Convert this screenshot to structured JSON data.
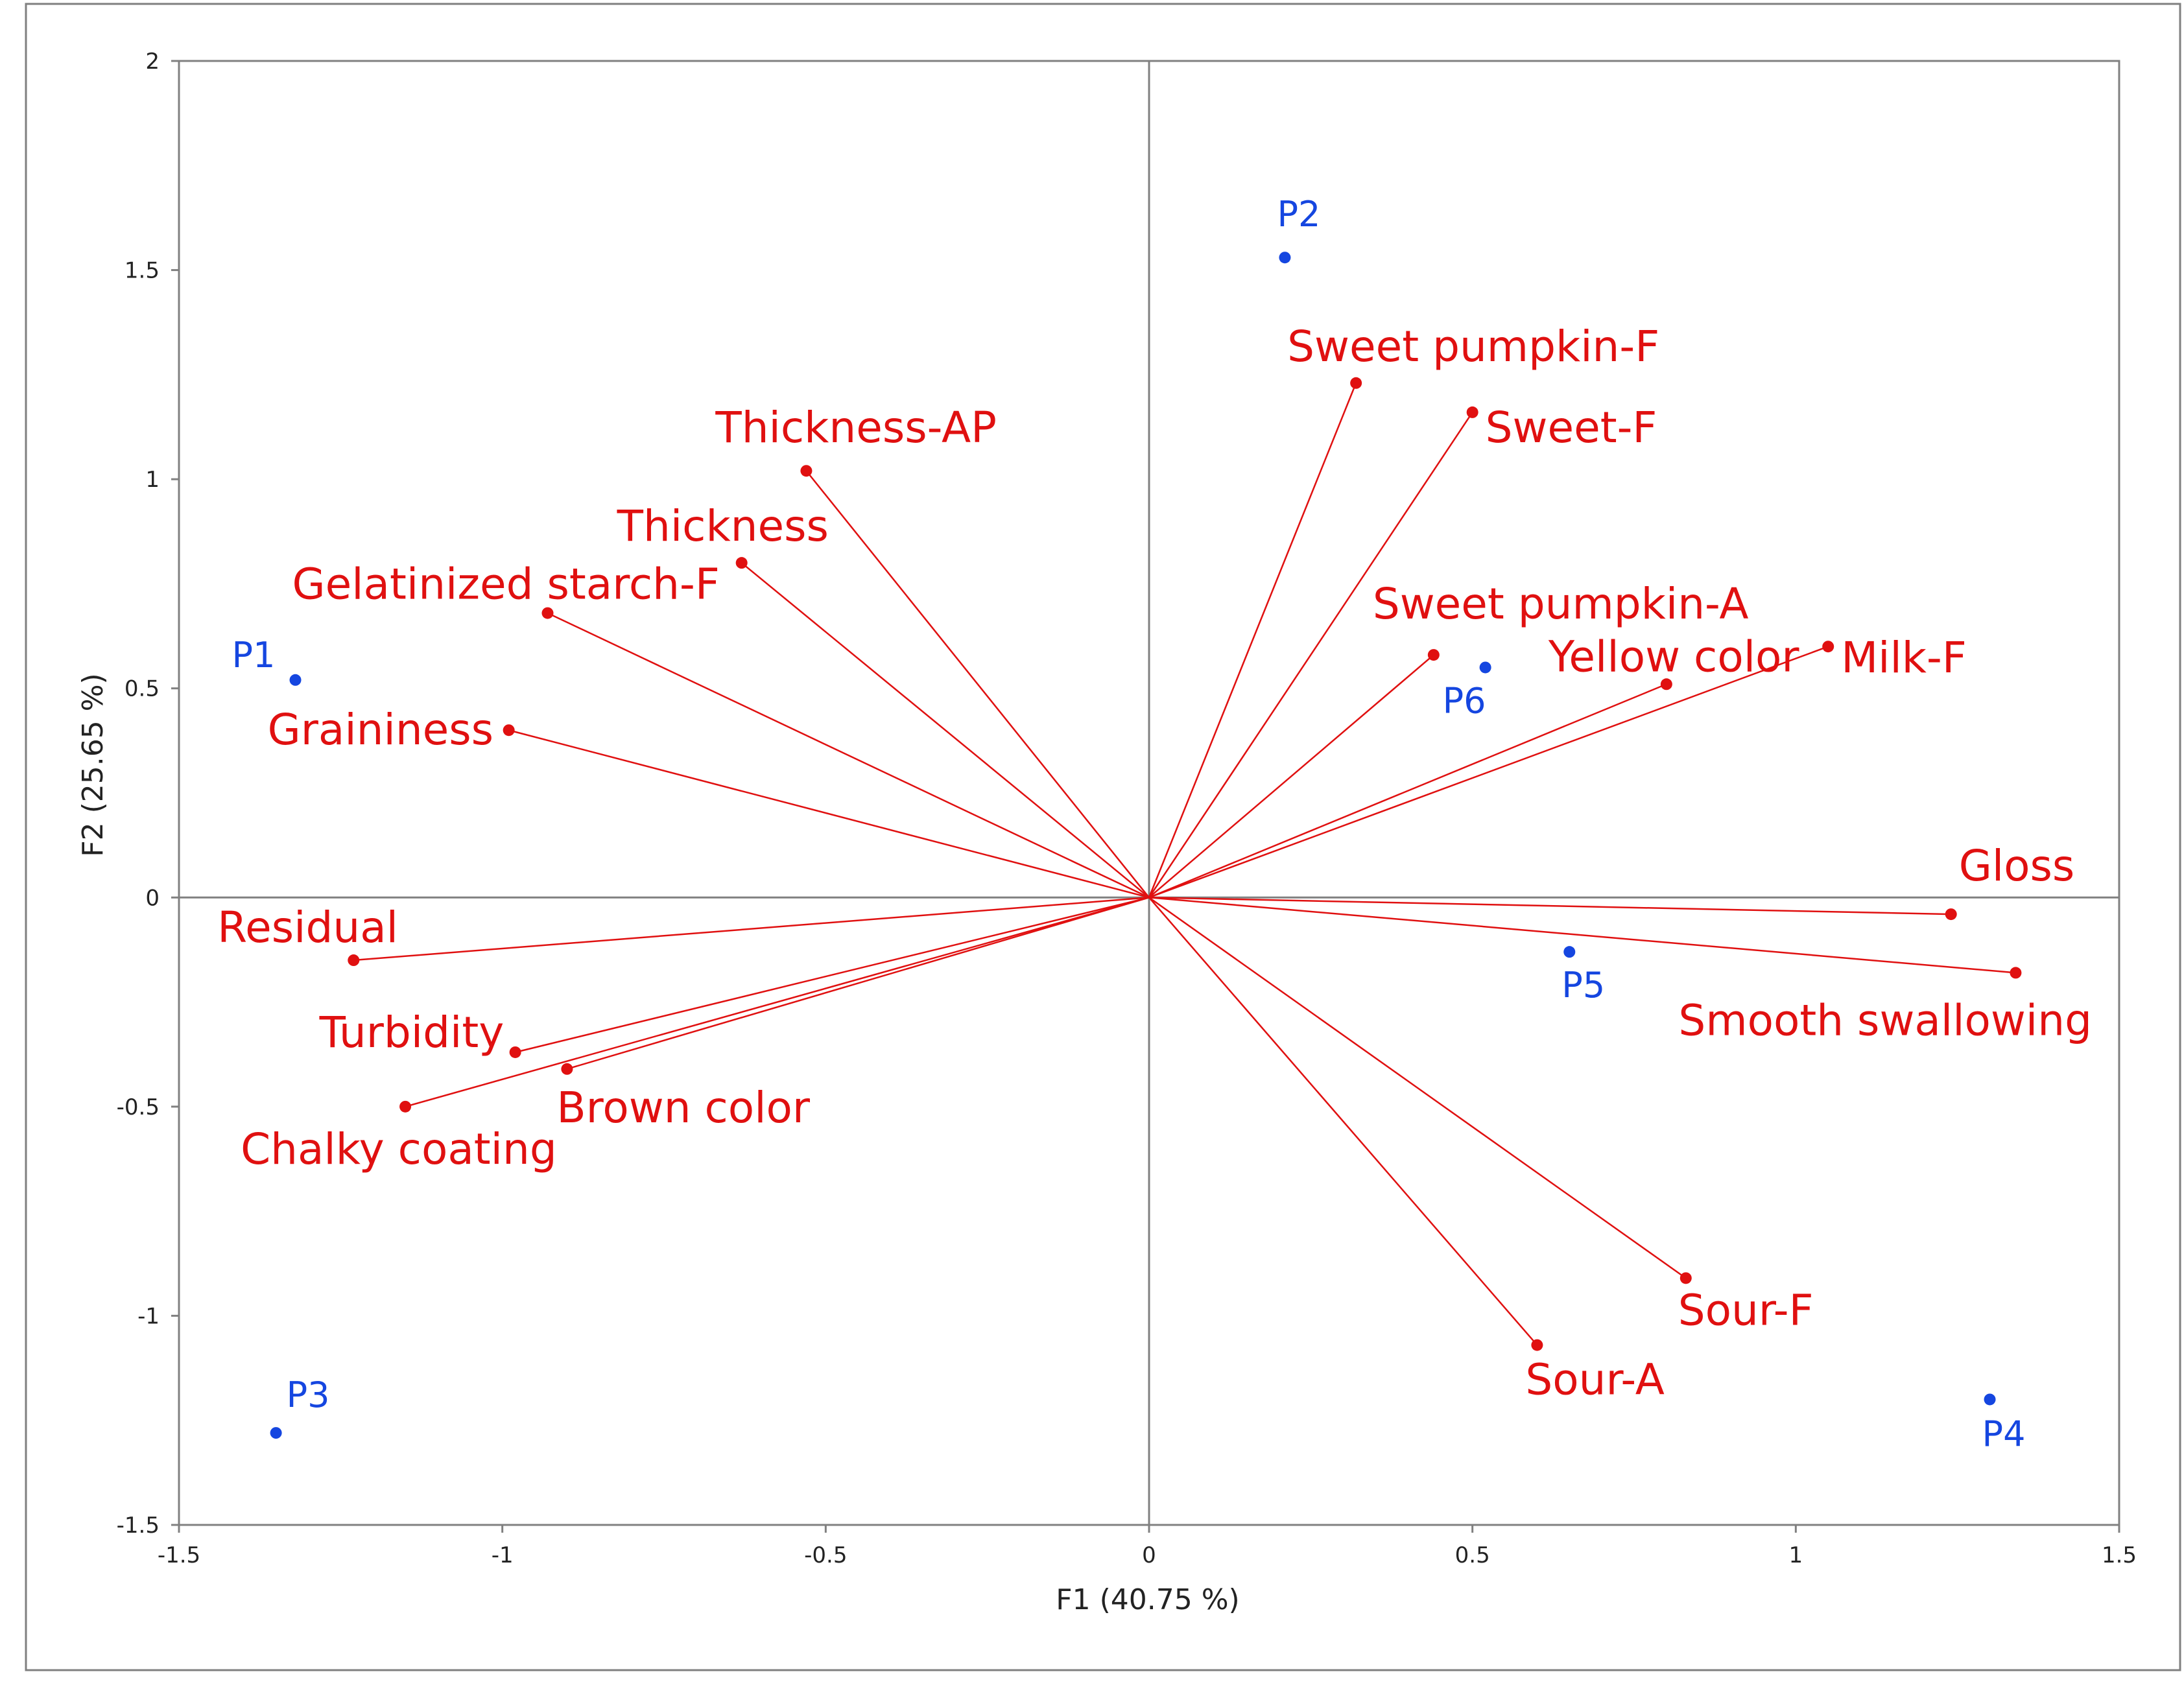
{
  "colors": {
    "variable": "#e01010",
    "observation": "#1546e0",
    "axis": "#808080",
    "frame": "#808080",
    "text": "#222222"
  },
  "chart_data": {
    "type": "scatter",
    "subtype": "pca-biplot",
    "title": "",
    "xlabel": "F1 (40.75 %)",
    "ylabel": "F2 (25.65 %)",
    "xlim": [
      -1.5,
      1.5
    ],
    "ylim": [
      -1.5,
      2
    ],
    "x_ticks": [
      -1.5,
      -1,
      -0.5,
      0,
      0.5,
      1,
      1.5
    ],
    "y_ticks": [
      -1.5,
      -1,
      -0.5,
      0,
      0.5,
      1,
      1.5,
      2
    ],
    "x_tick_labels": [
      "-1.5",
      "-1",
      "-0.5",
      "0",
      "0.5",
      "1",
      "1.5"
    ],
    "y_tick_labels": [
      "-1.5",
      "-1",
      "-0.5",
      "0",
      "0.5",
      "1",
      "1.5",
      "2"
    ],
    "grid": false,
    "legend": "none",
    "variables": [
      {
        "label": "Thickness-AP",
        "x": -0.53,
        "y": 1.02
      },
      {
        "label": "Thickness",
        "x": -0.63,
        "y": 0.8
      },
      {
        "label": "Gelatinized starch-F",
        "x": -0.93,
        "y": 0.68
      },
      {
        "label": "Graininess",
        "x": -0.99,
        "y": 0.4
      },
      {
        "label": "Residual",
        "x": -1.23,
        "y": -0.15
      },
      {
        "label": "Turbidity",
        "x": -0.98,
        "y": -0.37
      },
      {
        "label": "Brown color",
        "x": -0.9,
        "y": -0.41
      },
      {
        "label": "Chalky coating",
        "x": -1.15,
        "y": -0.5
      },
      {
        "label": "Sweet pumpkin-F",
        "x": 0.32,
        "y": 1.23
      },
      {
        "label": "Sweet-F",
        "x": 0.5,
        "y": 1.16
      },
      {
        "label": "Sweet pumpkin-A",
        "x": 0.44,
        "y": 0.58
      },
      {
        "label": "Yellow color",
        "x": 0.8,
        "y": 0.51
      },
      {
        "label": "Milk-F",
        "x": 1.05,
        "y": 0.6
      },
      {
        "label": "Gloss",
        "x": 1.24,
        "y": -0.04
      },
      {
        "label": "Smooth swallowing",
        "x": 1.34,
        "y": -0.18
      },
      {
        "label": "Sour-F",
        "x": 0.83,
        "y": -0.91
      },
      {
        "label": "Sour-A",
        "x": 0.6,
        "y": -1.07
      }
    ],
    "observations": [
      {
        "label": "P1",
        "x": -1.32,
        "y": 0.52
      },
      {
        "label": "P2",
        "x": 0.21,
        "y": 1.53
      },
      {
        "label": "P3",
        "x": -1.35,
        "y": -1.28
      },
      {
        "label": "P4",
        "x": 1.3,
        "y": -1.2
      },
      {
        "label": "P5",
        "x": 0.65,
        "y": -0.13
      },
      {
        "label": "P6",
        "x": 0.52,
        "y": 0.55
      }
    ]
  }
}
